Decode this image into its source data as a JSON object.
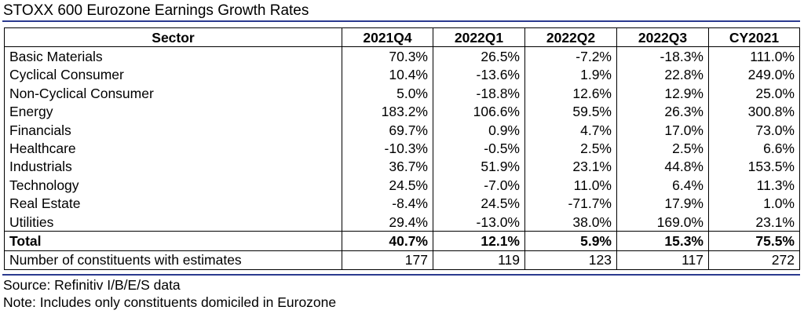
{
  "title": "STOXX 600 Eurozone Earnings Growth Rates",
  "table": {
    "headers": [
      "Sector",
      "2021Q4",
      "2022Q1",
      "2022Q2",
      "2022Q3",
      "CY2021"
    ],
    "rows": [
      [
        "Basic Materials",
        "70.3%",
        "26.5%",
        "-7.2%",
        "-18.3%",
        "111.0%"
      ],
      [
        "Cyclical Consumer",
        "10.4%",
        "-13.6%",
        "1.9%",
        "22.8%",
        "249.0%"
      ],
      [
        "Non-Cyclical Consumer",
        "5.0%",
        "-18.8%",
        "12.6%",
        "12.9%",
        "25.0%"
      ],
      [
        "Energy",
        "183.2%",
        "106.6%",
        "59.5%",
        "26.3%",
        "300.8%"
      ],
      [
        "Financials",
        "69.7%",
        "0.9%",
        "4.7%",
        "17.0%",
        "73.0%"
      ],
      [
        "Healthcare",
        "-10.3%",
        "-0.5%",
        "2.5%",
        "2.5%",
        "6.6%"
      ],
      [
        "Industrials",
        "36.7%",
        "51.9%",
        "23.1%",
        "44.8%",
        "153.5%"
      ],
      [
        "Technology",
        "24.5%",
        "-7.0%",
        "11.0%",
        "6.4%",
        "11.3%"
      ],
      [
        "Real Estate",
        "-8.4%",
        "24.5%",
        "-71.7%",
        "17.9%",
        "1.0%"
      ],
      [
        "Utilities",
        "29.4%",
        "-13.0%",
        "38.0%",
        "169.0%",
        "23.1%"
      ]
    ],
    "total": [
      "Total",
      "40.7%",
      "12.1%",
      "5.9%",
      "15.3%",
      "75.5%"
    ],
    "constituents": [
      "Number of constituents with estimates",
      "177",
      "119",
      "123",
      "117",
      "272"
    ]
  },
  "footer": {
    "source": "Source: Refinitiv I/B/E/S data",
    "note": "Note: Includes only constituents domiciled in Eurozone"
  },
  "colors": {
    "rule": "#2b3a8f"
  }
}
